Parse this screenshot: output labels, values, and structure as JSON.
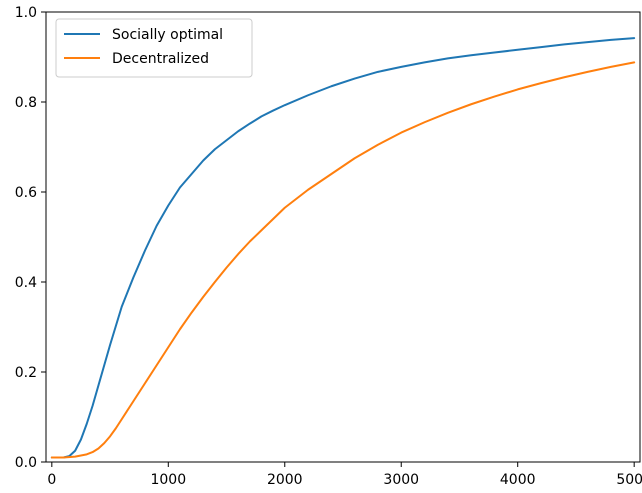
{
  "chart_data": {
    "type": "line",
    "xlim": [
      -50,
      5050
    ],
    "ylim": [
      0.0,
      1.0
    ],
    "x_ticks": [
      0,
      1000,
      2000,
      3000,
      4000,
      5000
    ],
    "x_tick_labels": [
      "0",
      "1000",
      "2000",
      "3000",
      "4000",
      "5000"
    ],
    "y_ticks": [
      0.0,
      0.2,
      0.4,
      0.6,
      0.8,
      1.0
    ],
    "y_tick_labels": [
      "0.0",
      "0.2",
      "0.4",
      "0.6",
      "0.8",
      "1.0"
    ],
    "grid": false,
    "legend_position": "upper-left",
    "series": [
      {
        "name": "Socially optimal",
        "color": "#1f77b4",
        "x": [
          0,
          100,
          150,
          200,
          250,
          300,
          350,
          400,
          450,
          500,
          600,
          700,
          800,
          900,
          1000,
          1100,
          1200,
          1300,
          1400,
          1500,
          1600,
          1700,
          1800,
          1900,
          2000,
          2200,
          2400,
          2600,
          2800,
          3000,
          3200,
          3400,
          3600,
          3800,
          4000,
          4200,
          4400,
          4600,
          4800,
          5000
        ],
        "y": [
          0.01,
          0.01,
          0.013,
          0.025,
          0.05,
          0.085,
          0.125,
          0.17,
          0.215,
          0.26,
          0.345,
          0.41,
          0.47,
          0.525,
          0.57,
          0.61,
          0.64,
          0.67,
          0.695,
          0.715,
          0.735,
          0.752,
          0.768,
          0.781,
          0.793,
          0.815,
          0.835,
          0.852,
          0.867,
          0.878,
          0.888,
          0.897,
          0.904,
          0.91,
          0.916,
          0.922,
          0.928,
          0.933,
          0.938,
          0.942
        ]
      },
      {
        "name": "Decentralized",
        "color": "#ff7f0e",
        "x": [
          0,
          100,
          200,
          300,
          350,
          400,
          450,
          500,
          550,
          600,
          700,
          800,
          900,
          1000,
          1100,
          1200,
          1300,
          1400,
          1500,
          1600,
          1700,
          1800,
          1900,
          2000,
          2200,
          2400,
          2600,
          2800,
          3000,
          3200,
          3400,
          3600,
          3800,
          4000,
          4200,
          4400,
          4600,
          4800,
          5000
        ],
        "y": [
          0.01,
          0.01,
          0.012,
          0.017,
          0.022,
          0.03,
          0.042,
          0.057,
          0.075,
          0.095,
          0.135,
          0.175,
          0.215,
          0.255,
          0.295,
          0.332,
          0.367,
          0.4,
          0.432,
          0.462,
          0.49,
          0.515,
          0.54,
          0.565,
          0.605,
          0.64,
          0.675,
          0.705,
          0.732,
          0.755,
          0.776,
          0.795,
          0.812,
          0.828,
          0.842,
          0.855,
          0.867,
          0.878,
          0.888
        ]
      }
    ]
  }
}
